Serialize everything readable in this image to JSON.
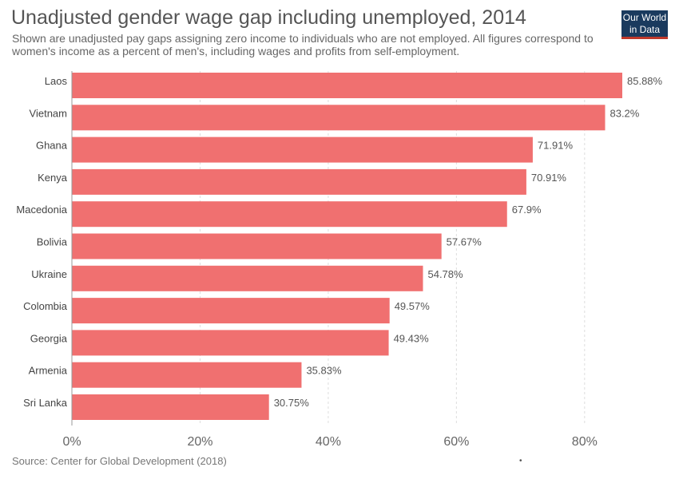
{
  "title": "Unadjusted gender wage gap including unemployed, 2014",
  "subtitle": "Shown are unadjusted pay gaps assigning zero income to individuals who are not employed. All figures correspond to women's income as a percent of men's, including wages and profits from self-employment.",
  "logo": {
    "line1": "Our World",
    "line2": "in Data"
  },
  "source": "Source: Center for Global Development (2018)",
  "dot": "•",
  "colors": {
    "bar": "#f07070",
    "grid": "#dddddd",
    "axis": "#999999"
  },
  "chart_data": {
    "type": "bar",
    "orientation": "horizontal",
    "title": "Unadjusted gender wage gap including unemployed, 2014",
    "xlim": [
      0,
      86
    ],
    "grid": true,
    "ticks": [
      0,
      20,
      40,
      60,
      80
    ],
    "tick_labels": [
      "0%",
      "20%",
      "40%",
      "60%",
      "80%"
    ],
    "categories": [
      "Laos",
      "Vietnam",
      "Ghana",
      "Kenya",
      "Macedonia",
      "Bolivia",
      "Ukraine",
      "Colombia",
      "Georgia",
      "Armenia",
      "Sri Lanka"
    ],
    "values": [
      85.88,
      83.2,
      71.91,
      70.91,
      67.9,
      57.67,
      54.78,
      49.57,
      49.43,
      35.83,
      30.75
    ],
    "value_labels": [
      "85.88%",
      "83.2%",
      "71.91%",
      "70.91%",
      "67.9%",
      "57.67%",
      "54.78%",
      "49.57%",
      "49.43%",
      "35.83%",
      "30.75%"
    ]
  }
}
